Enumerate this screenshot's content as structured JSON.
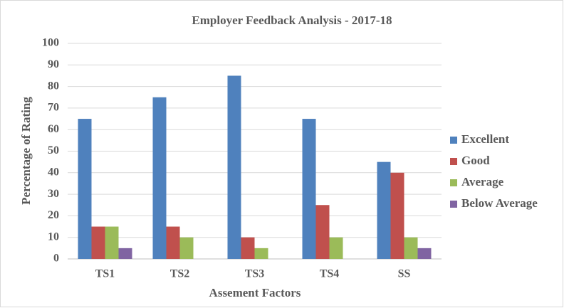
{
  "chart_data": {
    "type": "bar",
    "title": "Employer Feedback Analysis - 2017-18",
    "x_label": "Assement Factors",
    "y_label": "Percentage of Rating",
    "categories": [
      "TS1",
      "TS2",
      "TS3",
      "TS4",
      "SS"
    ],
    "series": [
      {
        "name": "Excellent",
        "color": "#4f81bd",
        "values": [
          65,
          75,
          85,
          65,
          45
        ]
      },
      {
        "name": "Good",
        "color": "#c0504d",
        "values": [
          15,
          15,
          10,
          25,
          40
        ]
      },
      {
        "name": "Average",
        "color": "#9bbb59",
        "values": [
          15,
          10,
          5,
          10,
          10
        ]
      },
      {
        "name": "Below Average",
        "color": "#8064a2",
        "values": [
          5,
          0,
          0,
          0,
          5
        ]
      }
    ],
    "ylim": [
      0,
      100
    ],
    "yticks": [
      0,
      10,
      20,
      30,
      40,
      50,
      60,
      70,
      80,
      90,
      100
    ],
    "grid": true,
    "legend": "right"
  }
}
